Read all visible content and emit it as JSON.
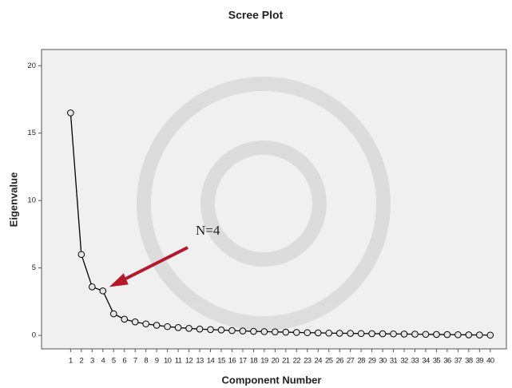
{
  "chart_data": {
    "type": "line",
    "title": "Scree Plot",
    "x_label": "Component Number",
    "y_label": "Eigenvalue",
    "x": [
      1,
      2,
      3,
      4,
      5,
      6,
      7,
      8,
      9,
      10,
      11,
      12,
      13,
      14,
      15,
      16,
      17,
      18,
      19,
      20,
      21,
      22,
      23,
      24,
      25,
      26,
      27,
      28,
      29,
      30,
      31,
      32,
      33,
      34,
      35,
      36,
      37,
      38,
      39,
      40
    ],
    "values": [
      16.5,
      6.0,
      3.6,
      3.3,
      1.6,
      1.2,
      1.0,
      0.85,
      0.75,
      0.65,
      0.58,
      0.52,
      0.47,
      0.43,
      0.4,
      0.36,
      0.33,
      0.3,
      0.28,
      0.26,
      0.24,
      0.22,
      0.2,
      0.19,
      0.17,
      0.16,
      0.15,
      0.14,
      0.13,
      0.12,
      0.11,
      0.1,
      0.09,
      0.08,
      0.07,
      0.06,
      0.05,
      0.04,
      0.03,
      0.02
    ],
    "color": "#000000",
    "xlim": [
      -1.7,
      41.5
    ],
    "ylim": [
      -1,
      21.2
    ],
    "xticks": [
      1,
      2,
      3,
      4,
      5,
      6,
      7,
      8,
      9,
      10,
      11,
      12,
      13,
      14,
      15,
      16,
      17,
      18,
      19,
      20,
      21,
      22,
      23,
      24,
      25,
      26,
      27,
      28,
      29,
      30,
      31,
      32,
      33,
      34,
      35,
      36,
      37,
      38,
      39,
      40
    ],
    "yticks": [
      0,
      5,
      10,
      15,
      20
    ],
    "annotation": "N=4",
    "annotation_color": "#b5172b"
  }
}
